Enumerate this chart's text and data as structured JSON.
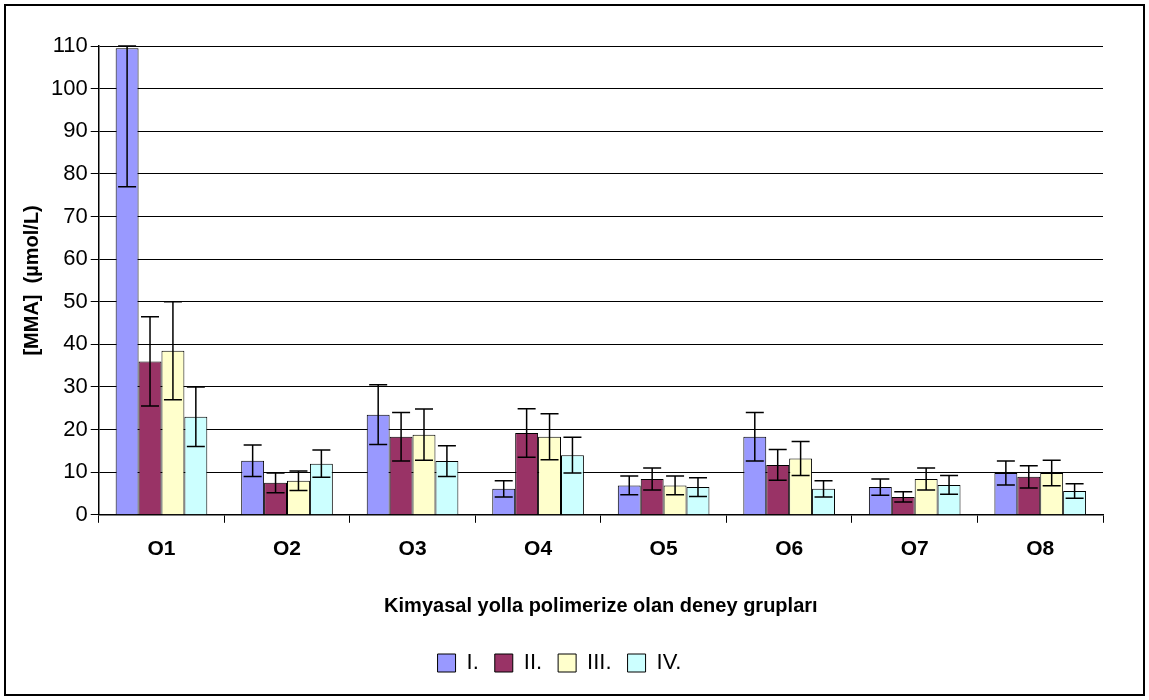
{
  "chart_data": {
    "type": "bar",
    "categories": [
      "O1",
      "O2",
      "O3",
      "O4",
      "O5",
      "O6",
      "O7",
      "O8"
    ],
    "xlabel": "Kimyasal yolla polimerize olan deney grupları",
    "ylabel": "[MMA]  (µmol/L)",
    "series": [
      {
        "name": "I.",
        "color": "#9999ff",
        "values": [
          109.5,
          12.7,
          23.5,
          6.1,
          6.9,
          18.3,
          6.5,
          9.8
        ],
        "errors": [
          [
            77,
            110
          ],
          3.7,
          7,
          1.9,
          2.2,
          5.7,
          1.9,
          2.8
        ]
      },
      {
        "name": "II.",
        "color": "#993366",
        "values": [
          36,
          7.5,
          18.3,
          19.2,
          8.4,
          11.7,
          4.2,
          8.9
        ],
        "errors": [
          10.5,
          2.3,
          5.7,
          5.7,
          2.6,
          3.6,
          1.2,
          2.6
        ]
      },
      {
        "name": "III.",
        "color": "#ffffcc",
        "values": [
          38.5,
          8,
          18.8,
          18.3,
          6.9,
          13.2,
          8.4,
          9.8
        ],
        "errors": [
          11.5,
          2.3,
          6,
          5.4,
          2.2,
          4,
          2.6,
          3
        ]
      },
      {
        "name": "IV.",
        "color": "#ccffff",
        "values": [
          23,
          12,
          12.6,
          14,
          6.5,
          6.1,
          7,
          5.6
        ],
        "errors": [
          7,
          3.2,
          3.6,
          4.2,
          2.2,
          1.9,
          2.2,
          1.7
        ]
      }
    ],
    "ylim": [
      0,
      110
    ],
    "yticks": [
      0,
      10,
      20,
      30,
      40,
      50,
      60,
      70,
      80,
      90,
      100,
      110
    ],
    "grid": "y",
    "legend": "bottom"
  }
}
